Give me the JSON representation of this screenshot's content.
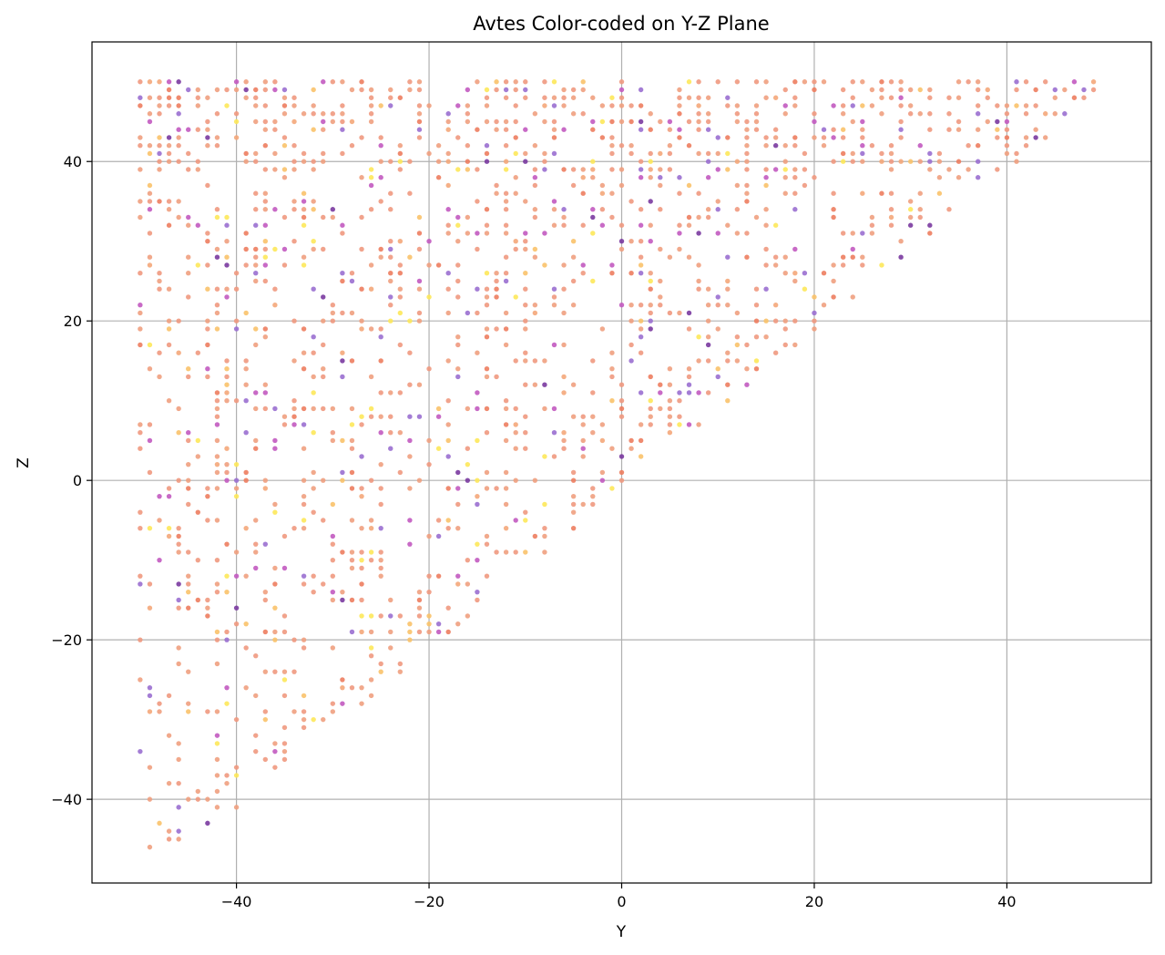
{
  "chart_data": {
    "type": "scatter",
    "title": "Avtes Color-coded on Y-Z Plane",
    "xlabel": "Y",
    "ylabel": "Z",
    "xlim": [
      -55,
      55
    ],
    "ylim": [
      -50.5,
      55
    ],
    "xticks": [
      -40,
      -20,
      0,
      20,
      40
    ],
    "yticks": [
      -40,
      -20,
      0,
      20,
      40
    ],
    "xtick_labels": [
      "−40",
      "−20",
      "0",
      "20",
      "40"
    ],
    "ytick_labels": [
      "−40",
      "−20",
      "0",
      "20",
      "40"
    ],
    "grid": true,
    "colormap": "plasma",
    "region": "points lie where z >= y - 1 (roughly triangular, integer grid, y in [-50, 49], z in [-46, 50])",
    "palette": [
      "#f0997f",
      "#f0a080",
      "#ed7d5f",
      "#f4a77a",
      "#9a6fd0",
      "#c25ac0",
      "#7a3aa0",
      "#fde85a",
      "#f9c26a",
      "#e8a090"
    ],
    "points": [
      {
        "y": -50,
        "z": 50
      },
      {
        "y": -50,
        "z": 48
      },
      {
        "y": -48,
        "z": 50
      },
      {
        "y": -48,
        "z": 48
      },
      {
        "y": -46,
        "z": 46
      },
      {
        "y": -44,
        "z": 48
      },
      {
        "y": -40,
        "z": 50
      },
      {
        "y": -38,
        "z": 45
      },
      {
        "y": -34,
        "z": 48
      },
      {
        "y": -30,
        "z": 50
      },
      {
        "y": -26,
        "z": 47
      },
      {
        "y": -22,
        "z": 50
      },
      {
        "y": -18,
        "z": 44
      },
      {
        "y": -14,
        "z": 48
      },
      {
        "y": -10,
        "z": 50
      },
      {
        "y": -6,
        "z": 49
      },
      {
        "y": -2,
        "z": 47
      },
      {
        "y": 2,
        "z": 45
      },
      {
        "y": 6,
        "z": 48
      },
      {
        "y": 10,
        "z": 50
      },
      {
        "y": 14,
        "z": 46
      },
      {
        "y": 18,
        "z": 48
      },
      {
        "y": 22,
        "z": 44
      },
      {
        "y": 26,
        "z": 47
      },
      {
        "y": 30,
        "z": 49
      },
      {
        "y": 34,
        "z": 46
      },
      {
        "y": 38,
        "z": 48
      },
      {
        "y": 42,
        "z": 50
      },
      {
        "y": 45,
        "z": 48
      },
      {
        "y": 47,
        "z": 50
      },
      {
        "y": 49,
        "z": 50
      },
      {
        "y": -50,
        "z": 42
      },
      {
        "y": -47,
        "z": 41
      },
      {
        "y": -43,
        "z": 43
      },
      {
        "y": -39,
        "z": 40
      },
      {
        "y": -35,
        "z": 42
      },
      {
        "y": -31,
        "z": 41
      },
      {
        "y": -27,
        "z": 43
      },
      {
        "y": -23,
        "z": 40
      },
      {
        "y": -19,
        "z": 42
      },
      {
        "y": -15,
        "z": 39
      },
      {
        "y": -11,
        "z": 41
      },
      {
        "y": -7,
        "z": 43
      },
      {
        "y": -3,
        "z": 40
      },
      {
        "y": 1,
        "z": 42
      },
      {
        "y": 5,
        "z": 39
      },
      {
        "y": 9,
        "z": 41
      },
      {
        "y": 13,
        "z": 43
      },
      {
        "y": 17,
        "z": 40
      },
      {
        "y": 21,
        "z": 42
      },
      {
        "y": 25,
        "z": 41
      },
      {
        "y": 29,
        "z": 43
      },
      {
        "y": 33,
        "z": 40
      },
      {
        "y": 37,
        "z": 42
      },
      {
        "y": 40,
        "z": 44
      },
      {
        "y": -50,
        "z": 35
      },
      {
        "y": -46,
        "z": 33
      },
      {
        "y": -42,
        "z": 34
      },
      {
        "y": -38,
        "z": 36
      },
      {
        "y": -34,
        "z": 35
      },
      {
        "y": -30,
        "z": 33
      },
      {
        "y": -26,
        "z": 34
      },
      {
        "y": -22,
        "z": 36
      },
      {
        "y": -18,
        "z": 32
      },
      {
        "y": -14,
        "z": 34
      },
      {
        "y": -10,
        "z": 35
      },
      {
        "y": -6,
        "z": 33
      },
      {
        "y": -2,
        "z": 36
      },
      {
        "y": 2,
        "z": 34
      },
      {
        "y": 6,
        "z": 32
      },
      {
        "y": 10,
        "z": 35
      },
      {
        "y": 14,
        "z": 33
      },
      {
        "y": 18,
        "z": 34
      },
      {
        "y": 22,
        "z": 36
      },
      {
        "y": 26,
        "z": 32
      },
      {
        "y": 30,
        "z": 35
      },
      {
        "y": 33,
        "z": 36
      },
      {
        "y": -49,
        "z": 27
      },
      {
        "y": -45,
        "z": 26
      },
      {
        "y": -41,
        "z": 28
      },
      {
        "y": -37,
        "z": 25
      },
      {
        "y": -33,
        "z": 27
      },
      {
        "y": -29,
        "z": 26
      },
      {
        "y": -25,
        "z": 28
      },
      {
        "y": -21,
        "z": 25
      },
      {
        "y": -17,
        "z": 27
      },
      {
        "y": -13,
        "z": 26
      },
      {
        "y": -9,
        "z": 28
      },
      {
        "y": -5,
        "z": 25
      },
      {
        "y": -1,
        "z": 27
      },
      {
        "y": 3,
        "z": 26
      },
      {
        "y": 7,
        "z": 28
      },
      {
        "y": 11,
        "z": 25
      },
      {
        "y": 15,
        "z": 27
      },
      {
        "y": 19,
        "z": 26
      },
      {
        "y": 23,
        "z": 27
      },
      {
        "y": 25,
        "z": 27
      },
      {
        "y": -50,
        "z": 21
      },
      {
        "y": -46,
        "z": 20
      },
      {
        "y": -42,
        "z": 21
      },
      {
        "y": -38,
        "z": 19
      },
      {
        "y": -34,
        "z": 20
      },
      {
        "y": -30,
        "z": 21
      },
      {
        "y": -26,
        "z": 19
      },
      {
        "y": -22,
        "z": 20
      },
      {
        "y": -18,
        "z": 21
      },
      {
        "y": -14,
        "z": 19
      },
      {
        "y": -10,
        "z": 20
      },
      {
        "y": -6,
        "z": 21
      },
      {
        "y": -2,
        "z": 19
      },
      {
        "y": 2,
        "z": 20
      },
      {
        "y": 6,
        "z": 21
      },
      {
        "y": 10,
        "z": 19
      },
      {
        "y": 14,
        "z": 20
      },
      {
        "y": 18,
        "z": 20
      },
      {
        "y": 21,
        "z": 22
      },
      {
        "y": -49,
        "z": 14
      },
      {
        "y": -45,
        "z": 13
      },
      {
        "y": -41,
        "z": 15
      },
      {
        "y": -37,
        "z": 12
      },
      {
        "y": -33,
        "z": 14
      },
      {
        "y": -29,
        "z": 13
      },
      {
        "y": -25,
        "z": 15
      },
      {
        "y": -21,
        "z": 12
      },
      {
        "y": -17,
        "z": 14
      },
      {
        "y": -13,
        "z": 13
      },
      {
        "y": -9,
        "z": 15
      },
      {
        "y": -5,
        "z": 12
      },
      {
        "y": -1,
        "z": 14
      },
      {
        "y": 3,
        "z": 13
      },
      {
        "y": 7,
        "z": 12
      },
      {
        "y": 10,
        "z": 13
      },
      {
        "y": 12,
        "z": 15
      },
      {
        "y": -50,
        "z": 7
      },
      {
        "y": -46,
        "z": 6
      },
      {
        "y": -42,
        "z": 8
      },
      {
        "y": -38,
        "z": 5
      },
      {
        "y": -34,
        "z": 7
      },
      {
        "y": -30,
        "z": 6
      },
      {
        "y": -26,
        "z": 8
      },
      {
        "y": -22,
        "z": 5
      },
      {
        "y": -18,
        "z": 7
      },
      {
        "y": -14,
        "z": 6
      },
      {
        "y": -10,
        "z": 8
      },
      {
        "y": -6,
        "z": 5
      },
      {
        "y": -2,
        "z": 7
      },
      {
        "y": 1,
        "z": 5
      },
      {
        "y": 3,
        "z": 7
      },
      {
        "y": -49,
        "z": 1
      },
      {
        "y": -45,
        "z": 0
      },
      {
        "y": -41,
        "z": 1
      },
      {
        "y": -37,
        "z": -1
      },
      {
        "y": -33,
        "z": 0
      },
      {
        "y": -29,
        "z": 1
      },
      {
        "y": -25,
        "z": -1
      },
      {
        "y": -21,
        "z": 0
      },
      {
        "y": -17,
        "z": 1
      },
      {
        "y": -13,
        "z": -1
      },
      {
        "y": -9,
        "z": 0
      },
      {
        "y": -5,
        "z": 1
      },
      {
        "y": -2,
        "z": 0
      },
      {
        "y": 0,
        "z": 1
      },
      {
        "y": -50,
        "z": -6
      },
      {
        "y": -46,
        "z": -7
      },
      {
        "y": -42,
        "z": -5
      },
      {
        "y": -38,
        "z": -8
      },
      {
        "y": -34,
        "z": -6
      },
      {
        "y": -30,
        "z": -7
      },
      {
        "y": -26,
        "z": -5
      },
      {
        "y": -22,
        "z": -8
      },
      {
        "y": -18,
        "z": -6
      },
      {
        "y": -14,
        "z": -7
      },
      {
        "y": -10,
        "z": -5
      },
      {
        "y": -8,
        "z": -7
      },
      {
        "y": -49,
        "z": -13
      },
      {
        "y": -45,
        "z": -14
      },
      {
        "y": -41,
        "z": -12
      },
      {
        "y": -37,
        "z": -15
      },
      {
        "y": -33,
        "z": -13
      },
      {
        "y": -29,
        "z": -14
      },
      {
        "y": -25,
        "z": -12
      },
      {
        "y": -21,
        "z": -15
      },
      {
        "y": -17,
        "z": -13
      },
      {
        "y": -15,
        "z": -14
      },
      {
        "y": -50,
        "z": -20
      },
      {
        "y": -46,
        "z": -21
      },
      {
        "y": -42,
        "z": -19
      },
      {
        "y": -38,
        "z": -22
      },
      {
        "y": -34,
        "z": -20
      },
      {
        "y": -30,
        "z": -21
      },
      {
        "y": -26,
        "z": -19
      },
      {
        "y": -22,
        "z": -18
      },
      {
        "y": -20,
        "z": -18
      },
      {
        "y": -49,
        "z": -27
      },
      {
        "y": -45,
        "z": -28
      },
      {
        "y": -41,
        "z": -26
      },
      {
        "y": -37,
        "z": -29
      },
      {
        "y": -33,
        "z": -27
      },
      {
        "y": -29,
        "z": -25
      },
      {
        "y": -26,
        "z": -25
      },
      {
        "y": -50,
        "z": -34
      },
      {
        "y": -46,
        "z": -35
      },
      {
        "y": -42,
        "z": -33
      },
      {
        "y": -38,
        "z": -32
      },
      {
        "y": -35,
        "z": -34
      },
      {
        "y": -49,
        "z": -36
      },
      {
        "y": -49,
        "z": -40
      },
      {
        "y": -48,
        "z": -43
      },
      {
        "y": -46,
        "z": -44
      },
      {
        "y": -49,
        "z": -46
      },
      {
        "y": -44,
        "z": -39
      },
      {
        "y": -41,
        "z": -38
      },
      {
        "y": -40,
        "z": -36
      },
      {
        "y": -40,
        "z": -30
      }
    ]
  }
}
